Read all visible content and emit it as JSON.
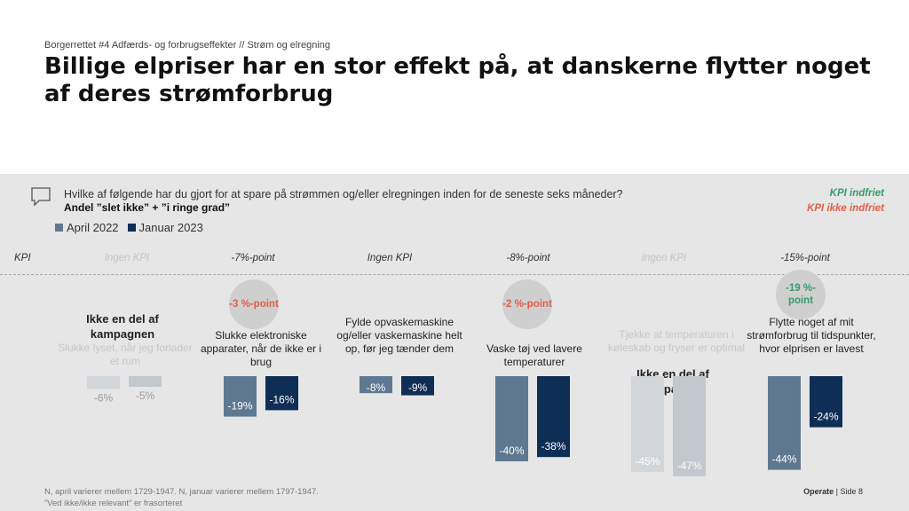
{
  "header": {
    "breadcrumb": "Borgerrettet #4 Adfærds- og forbrugseffekter // Strøm og elregning",
    "title": "Billige elpriser har en stor effekt på, at danskerne flytter noget af deres strømforbrug"
  },
  "question": {
    "text": "Hvilke af følgende har du gjort for at spare på strømmen og/eller elregningen inden for de seneste seks måneder?",
    "sub": "Andel ”slet ikke” + ”i ringe grad”"
  },
  "kpi_legend": {
    "met": "KPI indfriet",
    "not_met": "KPI ikke indfriet"
  },
  "kpi_row_label": "KPI",
  "campaign_note": "Ikke en del af kampagnen",
  "colors": {
    "april_2022": "#5f7891",
    "januar_2023": "#0f2e55",
    "faded_april": "#d2d6da",
    "faded_januar": "#c2c8cd",
    "met": "#3a9a6e",
    "not_met": "#e0604a"
  },
  "chart_data": {
    "type": "bar",
    "series_names": [
      "April 2022",
      "Januar 2023"
    ],
    "groups": [
      {
        "label": "Slukke lyset, når jeg forlader et rum",
        "kpi_target": "Ingen KPI",
        "kpi_result": "",
        "kpi_status": "",
        "in_campaign": false,
        "values": [
          -6,
          -5
        ],
        "value_labels": [
          "-6%",
          "-5%"
        ]
      },
      {
        "label": "Slukke elektroniske apparater, når de ikke er i brug",
        "kpi_target": "-7%-point",
        "kpi_result": "-3 %-point",
        "kpi_status": "not_met",
        "in_campaign": true,
        "values": [
          -19,
          -16
        ],
        "value_labels": [
          "-19%",
          "-16%"
        ]
      },
      {
        "label": "Fylde opvaskemaskine og/eller vaskemaskine helt op, før jeg tænder dem",
        "kpi_target": "Ingen KPI",
        "kpi_result": "",
        "kpi_status": "",
        "in_campaign": true,
        "values": [
          -8,
          -9
        ],
        "value_labels": [
          "-8%",
          "-9%"
        ]
      },
      {
        "label": "Vaske tøj ved lavere temperaturer",
        "kpi_target": "-8%-point",
        "kpi_result": "-2 %-point",
        "kpi_status": "not_met",
        "in_campaign": true,
        "values": [
          -40,
          -38
        ],
        "value_labels": [
          "-40%",
          "-38%"
        ]
      },
      {
        "label": "Tjekke at temperaturen i køleskab og fryser er optimal",
        "kpi_target": "Ingen KPI",
        "kpi_result": "",
        "kpi_status": "",
        "in_campaign": false,
        "values": [
          -45,
          -47
        ],
        "value_labels": [
          "-45%",
          "-47%"
        ]
      },
      {
        "label": "Flytte noget af mit strømforbrug til tidspunkter, hvor elprisen er lavest",
        "kpi_target": "-15%-point",
        "kpi_result": "-19 %-point",
        "kpi_status": "met",
        "in_campaign": true,
        "values": [
          -44,
          -24
        ],
        "value_labels": [
          "-44%",
          "-24%"
        ]
      }
    ]
  },
  "footer": {
    "n_note": "N, april varierer mellem 1729-1947. N, januar varierer mellem 1797-1947.",
    "filter_note": "”Ved ikke/ikke relevant” er frasorteret",
    "brand": "Operate",
    "sep": "|",
    "page": "Side 8"
  }
}
